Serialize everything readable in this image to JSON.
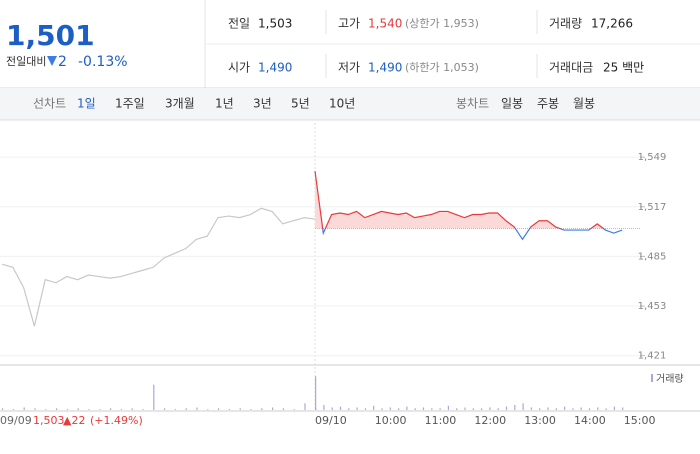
{
  "header": {
    "price": "1,501",
    "change_label": "전일대비",
    "change": "2",
    "change_rate": "-0.13%",
    "info": [
      [
        "전일",
        "1,503",
        null
      ],
      [
        "고가",
        "1,540",
        "(상한가 1,953)"
      ],
      [
        "거래량",
        "17,266",
        null
      ],
      [
        "시가",
        "1,490",
        null
      ],
      [
        "저가",
        "1,490",
        "(하한가 1,053)"
      ],
      [
        "거래대금",
        "25 백만",
        null
      ]
    ]
  },
  "tabs": {
    "line_label": "선차트",
    "line": [
      "1일",
      "1주일",
      "3개월",
      "1년",
      "3년",
      "5년",
      "10년"
    ],
    "candle_label": "봉차트",
    "candle": [
      "일봉",
      "주봉",
      "월봉"
    ]
  },
  "footer": {
    "date": "09/09",
    "close": "1,503",
    "change": "▲22",
    "rate": "(+1.49%)"
  },
  "chart_data": {
    "type": "line",
    "base": 1503,
    "grid": true,
    "categories": [
      "09/09",
      null,
      null,
      null,
      null,
      null,
      null,
      null,
      null,
      null,
      null,
      null,
      null,
      null,
      null,
      null,
      null,
      null,
      null,
      null,
      null,
      null,
      null,
      null,
      null,
      null,
      null,
      null,
      null,
      null,
      "09/10",
      null,
      null,
      null,
      null,
      null,
      "10:00",
      null,
      null,
      null,
      null,
      null,
      "11:00",
      null,
      null,
      null,
      null,
      null,
      "12:00",
      null,
      null,
      null,
      null,
      null,
      "13:00",
      null,
      null,
      null,
      null,
      null,
      "14:00",
      null,
      null,
      null,
      null,
      null,
      "15:00",
      null
    ],
    "ylim": [
      1415,
      1571
    ],
    "yticks": [
      {
        "value": 1421,
        "label": "1,421"
      },
      {
        "value": 1453,
        "label": "1,453"
      },
      {
        "value": 1485,
        "label": "1,485"
      },
      {
        "value": 1517,
        "label": "1,517"
      },
      {
        "value": 1549,
        "label": "1,549"
      }
    ],
    "series": [
      {
        "color": "#c8c8c8",
        "values": [
          1480,
          1478,
          1465,
          1440,
          1470,
          1468,
          1472,
          1470,
          1473,
          1472,
          1471,
          1472,
          1474,
          1476,
          1478,
          1484,
          1487,
          1490,
          1496,
          1498,
          1510,
          1511,
          1510,
          1512,
          1516,
          1514,
          1506,
          1508,
          1510,
          1509,
          null,
          null,
          null,
          null,
          null,
          null,
          null,
          null,
          null,
          null,
          null,
          null,
          null,
          null,
          null,
          null,
          null,
          null,
          null,
          null,
          null,
          null,
          null,
          null,
          null,
          null,
          null,
          null,
          null,
          null,
          null,
          null,
          null,
          null,
          null,
          null,
          null,
          null
        ]
      },
      {
        "color": "#e83a3a",
        "color_down": "#3a7ce8",
        "values": [
          null,
          null,
          null,
          null,
          null,
          null,
          null,
          null,
          null,
          null,
          null,
          null,
          null,
          null,
          null,
          null,
          null,
          null,
          null,
          null,
          null,
          null,
          null,
          null,
          null,
          null,
          null,
          null,
          null,
          null,
          1540,
          1500,
          1512,
          1513,
          1512,
          1514,
          1510,
          1512,
          1514,
          1513,
          1512,
          1513,
          1510,
          1511,
          1512,
          1514,
          1514,
          1512,
          1510,
          1512,
          1512,
          1513,
          1513,
          1508,
          1504,
          1496,
          1504,
          1508,
          1508,
          1504,
          1502,
          1502,
          1502,
          1502,
          1506,
          1502,
          1500,
          1502
        ]
      }
    ],
    "volume": {
      "name": "거래량",
      "color": "#a9a9d9",
      "ylim": [
        0,
        45
      ],
      "values": [
        2,
        1,
        3,
        2,
        1,
        2,
        1,
        2,
        1,
        1,
        2,
        1,
        2,
        1,
        30,
        2,
        1,
        2,
        3,
        1,
        2,
        1,
        2,
        1,
        2,
        3,
        2,
        1,
        8,
        2,
        40,
        6,
        3,
        4,
        2,
        3,
        2,
        5,
        2,
        3,
        2,
        4,
        2,
        3,
        2,
        2,
        5,
        2,
        3,
        2,
        2,
        3,
        2,
        4,
        6,
        8,
        3,
        2,
        3,
        2,
        4,
        2,
        3,
        2,
        3,
        2,
        4,
        3
      ]
    }
  }
}
